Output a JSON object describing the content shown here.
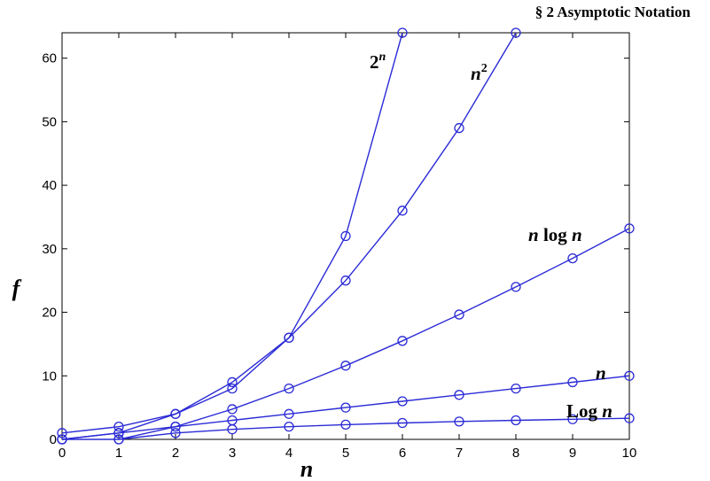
{
  "header": {
    "text": "§ 2  Asymptotic Notation"
  },
  "chart_data": {
    "type": "line",
    "title": "",
    "xlabel": "n",
    "ylabel": "f",
    "xlim": [
      0,
      10
    ],
    "ylim": [
      0,
      64
    ],
    "xticks": [
      0,
      1,
      2,
      3,
      4,
      5,
      6,
      7,
      8,
      9,
      10
    ],
    "yticks": [
      0,
      10,
      20,
      30,
      40,
      50,
      60
    ],
    "grid": false,
    "line_color": "#2b2bd6",
    "series": [
      {
        "name": "2^n",
        "label_base": "2",
        "label_sup": "n",
        "x": [
          0,
          1,
          2,
          3,
          4,
          5,
          6
        ],
        "y": [
          1,
          2,
          4,
          8,
          16,
          32,
          64
        ]
      },
      {
        "name": "n^2",
        "label_base": "n",
        "label_sup": "2",
        "x": [
          0,
          1,
          2,
          3,
          4,
          5,
          6,
          7,
          8
        ],
        "y": [
          0,
          1,
          4,
          9,
          16,
          25,
          36,
          49,
          64
        ]
      },
      {
        "name": "n log n",
        "label_parts": [
          "n",
          " log ",
          "n"
        ],
        "x": [
          0,
          1,
          2,
          3,
          4,
          5,
          6,
          7,
          8,
          9,
          10
        ],
        "y": [
          0,
          0,
          2,
          4.75,
          8,
          11.6,
          15.5,
          19.65,
          24,
          28.5,
          33.2
        ]
      },
      {
        "name": "n",
        "label_parts": [
          "n"
        ],
        "x": [
          0,
          1,
          2,
          3,
          4,
          5,
          6,
          7,
          8,
          9,
          10
        ],
        "y": [
          0,
          1,
          2,
          3,
          4,
          5,
          6,
          7,
          8,
          9,
          10
        ]
      },
      {
        "name": "Log n",
        "label_parts": [
          "Log ",
          "n"
        ],
        "x": [
          1,
          2,
          3,
          4,
          5,
          6,
          7,
          8,
          9,
          10
        ],
        "y": [
          0,
          1,
          1.58,
          2,
          2.32,
          2.58,
          2.81,
          3,
          3.17,
          3.32
        ]
      }
    ]
  }
}
